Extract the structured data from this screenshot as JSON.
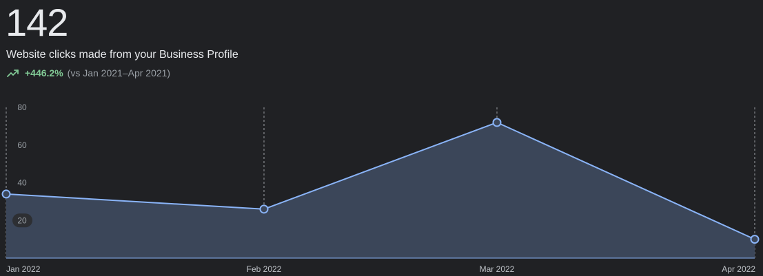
{
  "summary": {
    "total": "142",
    "subtitle": "Website clicks made from your Business Profile",
    "delta_value": "+446.2%",
    "delta_comparison": "(vs Jan 2021–Apr 2021)",
    "trend_icon": "trending-up-icon"
  },
  "colors": {
    "background": "#202124",
    "line": "#8ab4f8",
    "area_fill": "#3b4659",
    "positive": "#81c995",
    "gridline": "#bdc1c6",
    "axis_text": "#9aa0a6"
  },
  "chart_data": {
    "type": "area",
    "title": "",
    "xlabel": "",
    "ylabel": "",
    "categories": [
      "Jan 2022",
      "Feb 2022",
      "Mar 2022",
      "Apr 2022"
    ],
    "series": [
      {
        "values": [
          34,
          26,
          72,
          10
        ]
      }
    ],
    "y_ticks": [
      "20",
      "40",
      "60",
      "80"
    ],
    "ylim": [
      0,
      80
    ],
    "vertical_gridlines": "dashed",
    "highlighted_tick": "20",
    "legend": "none"
  }
}
